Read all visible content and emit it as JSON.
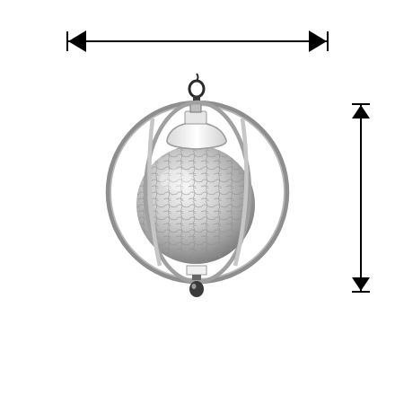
{
  "image": {
    "subject": "pendant-lamp-product-photo",
    "background_color": "#ffffff"
  },
  "dimension_arrows": {
    "width_arrow": {
      "icon": "horizontal-double-arrow-icon",
      "color": "#000000",
      "label": ""
    },
    "height_arrow": {
      "icon": "vertical-double-arrow-icon",
      "color": "#000000",
      "label": ""
    }
  },
  "lamp": {
    "icon": "orb-pendant-lamp-icon",
    "frame_color": "#9a9a9a",
    "globe_color": "#c8c8c8",
    "canopy_color": "#f2f2f2",
    "hook_color": "#2a2a2a"
  }
}
